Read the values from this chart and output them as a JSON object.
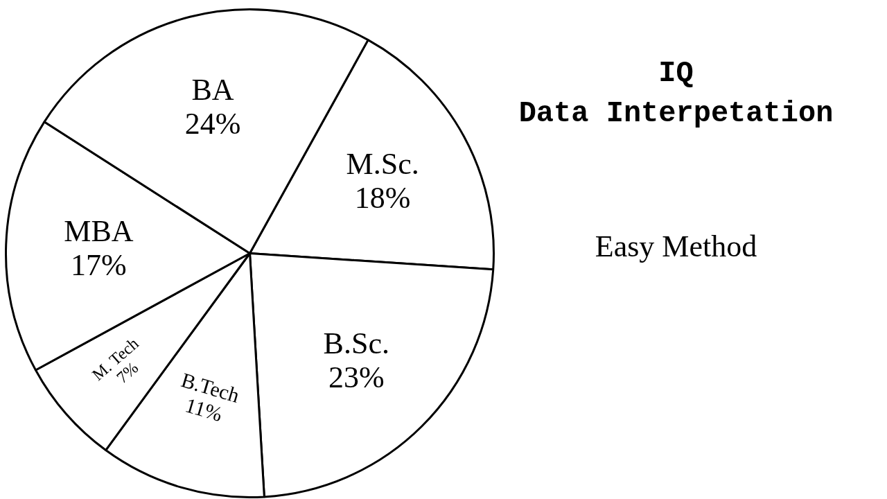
{
  "chart_data": {
    "type": "pie",
    "title": "IQ",
    "subtitle": "Data Interpetation",
    "annotations": [
      "Easy Method"
    ],
    "categories": [
      "M.Sc.",
      "B.Sc.",
      "B.Tech",
      "M. Tech",
      "MBA",
      "BA"
    ],
    "values": [
      18,
      23,
      11,
      7,
      17,
      24
    ],
    "value_labels": [
      "18%",
      "23%",
      "11%",
      "7%",
      "17%",
      "24%"
    ],
    "colors": [
      "#ffffff",
      "#ffffff",
      "#ffffff",
      "#ffffff",
      "#ffffff",
      "#ffffff"
    ],
    "legend": false
  }
}
